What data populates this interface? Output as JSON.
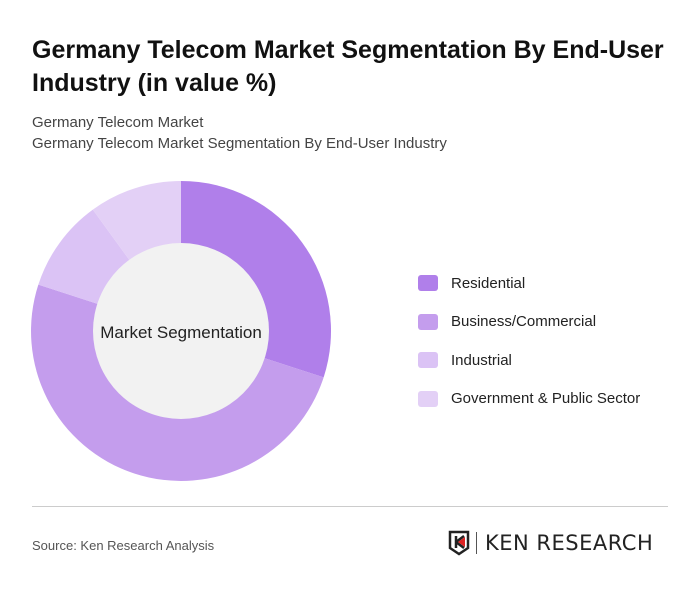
{
  "title": "Germany Telecom Market Segmentation By End-User Industry (in value %)",
  "subtitle1": "Germany Telecom Market",
  "subtitle2": "Germany Telecom Market Segmentation By End-User Industry",
  "source": "Source: Ken Research Analysis",
  "logo_text": "KEN RESEARCH",
  "chart_data": {
    "type": "pie",
    "donut": true,
    "center_label": "Market Segmentation",
    "categories": [
      "Residential",
      "Business/Commercial",
      "Industrial",
      "Government & Public Sector"
    ],
    "values": [
      30,
      50,
      10,
      10
    ],
    "colors": [
      "#b07fea",
      "#c49ded",
      "#dbc3f5",
      "#e3d0f6"
    ],
    "legend_position": "right"
  }
}
